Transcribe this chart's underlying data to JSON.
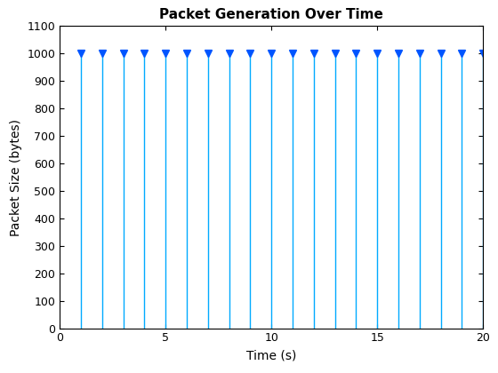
{
  "title": "Packet Generation Over Time",
  "xlabel": "Time (s)",
  "ylabel": "Packet Size (bytes)",
  "x_values": [
    1,
    2,
    3,
    4,
    5,
    6,
    7,
    8,
    9,
    10,
    11,
    12,
    13,
    14,
    15,
    16,
    17,
    18,
    19,
    20
  ],
  "y_values": [
    1000,
    1000,
    1000,
    1000,
    1000,
    1000,
    1000,
    1000,
    1000,
    1000,
    1000,
    1000,
    1000,
    1000,
    1000,
    1000,
    1000,
    1000,
    1000,
    1000
  ],
  "stem_color": "#00AAFF",
  "marker_color": "#0055FF",
  "xlim": [
    0,
    20
  ],
  "ylim": [
    0,
    1100
  ],
  "yticks": [
    0,
    100,
    200,
    300,
    400,
    500,
    600,
    700,
    800,
    900,
    1000,
    1100
  ],
  "xticks": [
    0,
    5,
    10,
    15,
    20
  ],
  "title_fontsize": 11,
  "label_fontsize": 10,
  "background_color": "#ffffff"
}
